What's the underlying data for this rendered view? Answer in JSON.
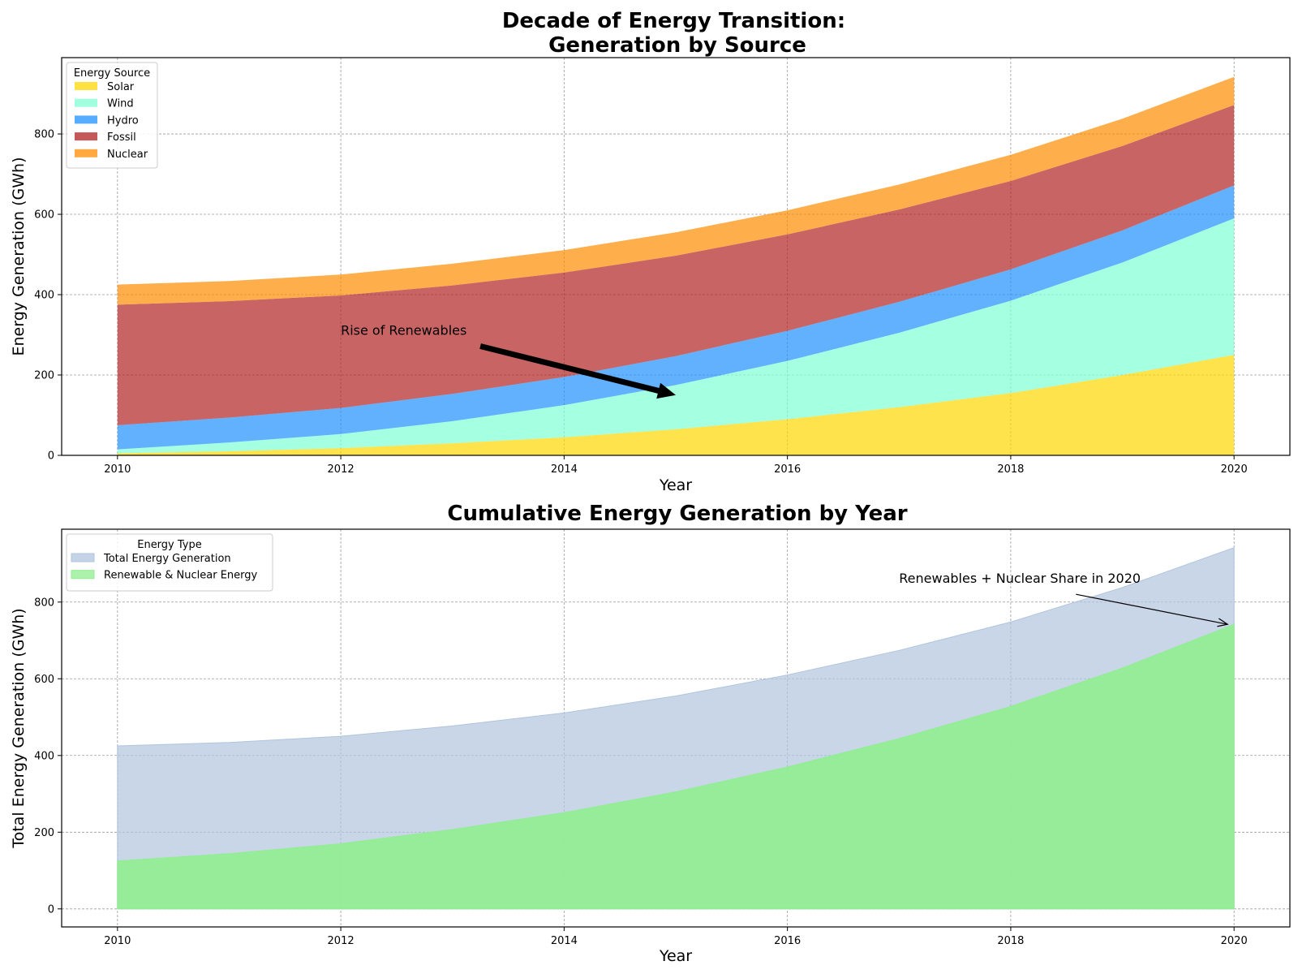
{
  "chart_data": [
    {
      "type": "area",
      "stacked": true,
      "title": "Decade of Energy Transition:\nGeneration by Source",
      "xlabel": "Year",
      "ylabel": "Energy Generation (GWh)",
      "x": [
        2010,
        2011,
        2012,
        2013,
        2014,
        2015,
        2016,
        2017,
        2018,
        2019,
        2020
      ],
      "xticks": [
        2010,
        2012,
        2014,
        2016,
        2018,
        2020
      ],
      "yticks": [
        0,
        200,
        400,
        600,
        800
      ],
      "xlim": [
        2009.5,
        2020.5
      ],
      "ylim": [
        0,
        990
      ],
      "grid": true,
      "legend": {
        "title": "Energy Source",
        "position": "top-left"
      },
      "series": [
        {
          "name": "Solar",
          "color": "#ffd700",
          "values": [
            5,
            10,
            18,
            30,
            45,
            65,
            90,
            120,
            155,
            200,
            250
          ]
        },
        {
          "name": "Wind",
          "color": "#7fffd4",
          "values": [
            10,
            22,
            35,
            55,
            80,
            110,
            145,
            185,
            230,
            280,
            340
          ]
        },
        {
          "name": "Hydro",
          "color": "#1e90ff",
          "values": [
            60,
            62,
            65,
            68,
            70,
            72,
            75,
            77,
            78,
            80,
            82
          ]
        },
        {
          "name": "Fossil",
          "color": "#b22222",
          "values": [
            300,
            290,
            280,
            270,
            260,
            250,
            240,
            230,
            220,
            210,
            200
          ]
        },
        {
          "name": "Nuclear",
          "color": "#ff8c00",
          "values": [
            50,
            50,
            52,
            54,
            56,
            58,
            60,
            62,
            65,
            68,
            70
          ]
        }
      ],
      "annotation": {
        "text": "Rise of Renewables",
        "x": 2012,
        "y": 300,
        "arrow_to": {
          "x": 2015,
          "y": 150
        }
      }
    },
    {
      "type": "area",
      "stacked": false,
      "title": "Cumulative Energy Generation by Year",
      "xlabel": "Year",
      "ylabel": "Total Energy Generation (GWh)",
      "x": [
        2010,
        2011,
        2012,
        2013,
        2014,
        2015,
        2016,
        2017,
        2018,
        2019,
        2020
      ],
      "xticks": [
        2010,
        2012,
        2014,
        2016,
        2018,
        2020
      ],
      "yticks": [
        0,
        200,
        400,
        600,
        800
      ],
      "xlim": [
        2009.5,
        2020.5
      ],
      "ylim": [
        -47,
        990
      ],
      "grid": true,
      "legend": {
        "title": "Energy Type",
        "position": "top-left"
      },
      "series": [
        {
          "name": "Total Energy Generation",
          "color": "#b0c4de",
          "values": [
            425,
            434,
            450,
            477,
            511,
            555,
            610,
            674,
            748,
            838,
            942
          ]
        },
        {
          "name": "Renewable & Nuclear Energy",
          "color": "#90ee90",
          "values": [
            125,
            144,
            170,
            207,
            251,
            305,
            370,
            444,
            528,
            628,
            742
          ]
        }
      ],
      "annotation": {
        "text": "Renewables + Nuclear Share in 2020",
        "x": 2017,
        "y": 850,
        "arrow_to": {
          "x": 2020,
          "y": 742
        }
      }
    }
  ]
}
